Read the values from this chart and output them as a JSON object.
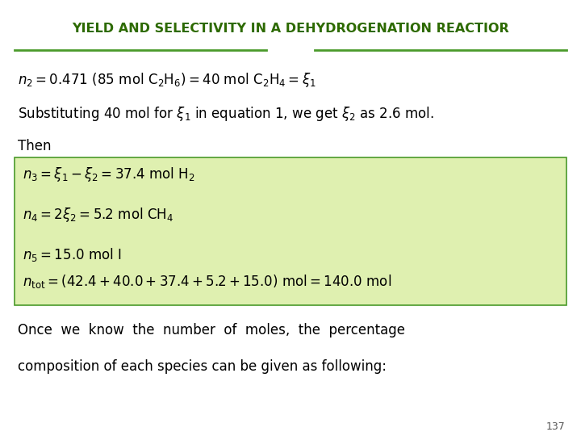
{
  "title": "YIELD AND SELECTIVITY IN A DEHYDROGENATION REACTIOR",
  "title_color": "#2d6a00",
  "title_fontsize": 11.5,
  "bg_color": "#ffffff",
  "line_color": "#4a9a2a",
  "box_color": "#dff0b0",
  "page_number": "137",
  "box_lines": [
    "$n_3 = \\xi_1 - \\xi_2 = 37.4\\ \\mathrm{mol\\ H_2}$",
    "$n_4 = 2\\xi_2 = 5.2\\ \\mathrm{mol\\ CH_4}$",
    "$n_5 = 15.0\\ \\mathrm{mol\\ I}$",
    "$n_{\\mathrm{tot}} = (42.4 + 40.0 + 37.4 + 5.2 + 15.0)\\ \\mathrm{mol} = 140.0\\ \\mathrm{mol}$"
  ],
  "footer1": "Once  we  know  the  number  of  moles,  the  percentage",
  "footer2": "composition of each species can be given as following:"
}
